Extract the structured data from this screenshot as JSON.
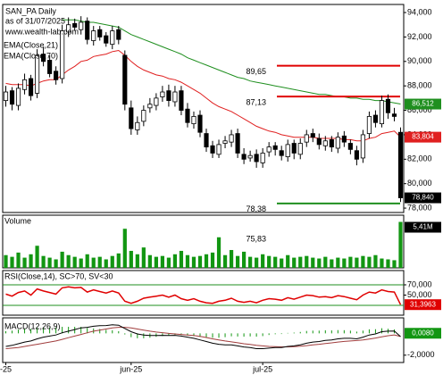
{
  "chart_data": [
    {
      "type": "candlestick",
      "title": "SAN_PA Daily",
      "subtitle": "as of 31/07/2025",
      "source": "www.wealth-lab.com",
      "open": [
        86.8,
        87.6,
        86.4,
        87.7,
        88.6,
        87.4,
        90.6,
        90.1,
        89.2,
        88.6,
        92.4,
        93.1,
        92.6,
        93.3,
        91.7,
        92.6,
        92.1,
        91.4,
        92.6,
        90.5,
        86.2,
        84.4,
        85.1,
        86.2,
        86.4,
        87.1,
        87.6,
        86.7,
        87.6,
        86.1,
        84.9,
        85.6,
        84.1,
        83.1,
        82.4,
        83.3,
        83.4,
        84.1,
        82.4,
        82.1,
        82.4,
        81.7,
        82.6,
        83.1,
        82.7,
        82.2,
        83.3,
        82.4,
        83.4,
        84.1,
        83.7,
        83.1,
        83.6,
        82.9,
        83.9,
        83.3,
        82.7,
        82.1,
        84.1,
        85.6,
        84.9,
        86.9,
        85.7,
        84.2
      ],
      "high": [
        88.0,
        87.9,
        88.2,
        89.0,
        88.9,
        91.0,
        91.2,
        90.5,
        89.6,
        93.0,
        93.6,
        93.5,
        93.7,
        93.6,
        92.9,
        92.9,
        92.4,
        92.9,
        92.9,
        90.9,
        86.8,
        85.5,
        86.4,
        87.0,
        87.4,
        88.0,
        88.1,
        88.0,
        88.0,
        86.6,
        85.9,
        86.0,
        84.5,
        83.5,
        83.6,
        83.9,
        84.4,
        84.5,
        82.9,
        82.7,
        82.8,
        82.9,
        83.4,
        83.4,
        83.1,
        83.6,
        83.6,
        83.7,
        84.4,
        84.5,
        84.1,
        83.9,
        83.9,
        84.2,
        84.3,
        83.6,
        83.1,
        84.4,
        85.9,
        86.0,
        87.2,
        87.3,
        86.2,
        84.6
      ],
      "low": [
        86.3,
        86.0,
        86.0,
        87.3,
        86.8,
        87.0,
        89.6,
        88.7,
        88.1,
        88.2,
        92.0,
        92.5,
        92.2,
        91.4,
        91.3,
        91.7,
        91.2,
        91.0,
        91.4,
        86.0,
        84.0,
        84.0,
        84.7,
        85.8,
        86.0,
        86.7,
        86.3,
        86.3,
        85.6,
        84.6,
        84.5,
        83.8,
        82.6,
        82.1,
        82.1,
        82.9,
        83.0,
        82.1,
        81.6,
        81.8,
        81.3,
        81.3,
        82.2,
        82.3,
        81.9,
        81.8,
        82.0,
        82.0,
        83.0,
        83.4,
        82.8,
        82.7,
        82.6,
        82.5,
        83.0,
        82.4,
        81.5,
        81.7,
        83.7,
        84.6,
        84.6,
        85.3,
        85.1,
        78.5
      ],
      "close": [
        87.5,
        86.5,
        87.8,
        88.5,
        87.2,
        90.5,
        90,
        89,
        88.5,
        92.5,
        93,
        92.8,
        93.2,
        91.8,
        92.5,
        92,
        91.5,
        92.5,
        91.8,
        86.5,
        84.5,
        85,
        86,
        86.5,
        87,
        87.5,
        86.8,
        87.5,
        86,
        85,
        85.5,
        84.2,
        83,
        82.5,
        83.2,
        83.5,
        84,
        82.5,
        82,
        82.3,
        81.8,
        82.5,
        83,
        82.8,
        82.3,
        83.2,
        82.5,
        83.3,
        84,
        83.8,
        83.2,
        83.5,
        83,
        83.8,
        83.4,
        82.8,
        82,
        84,
        85.5,
        85,
        86.8,
        85.8,
        85.5,
        78.84
      ],
      "close_last_label": "78,840",
      "series": [
        {
          "name": "EMA(Close,21)",
          "color": "#e02020",
          "last_label": "83,804",
          "values": [
            88.2,
            88.1,
            88.1,
            88.1,
            88.0,
            88.2,
            88.4,
            88.5,
            88.5,
            88.9,
            89.3,
            89.6,
            90.0,
            90.1,
            90.4,
            90.5,
            90.6,
            90.8,
            90.9,
            90.5,
            90.0,
            89.6,
            89.3,
            89.1,
            88.9,
            88.8,
            88.6,
            88.5,
            88.3,
            88.0,
            87.7,
            87.4,
            87.0,
            86.6,
            86.3,
            86.1,
            85.9,
            85.6,
            85.3,
            85.0,
            84.7,
            84.5,
            84.3,
            84.2,
            84.0,
            83.9,
            83.8,
            83.8,
            83.8,
            83.8,
            83.7,
            83.7,
            83.7,
            83.7,
            83.6,
            83.6,
            83.5,
            83.5,
            83.7,
            83.8,
            84.1,
            84.2,
            84.3,
            83.804
          ]
        },
        {
          "name": "EMA(Close,70)",
          "color": "#1f8f1f",
          "last_label": "86,512",
          "values": [
            null,
            null,
            null,
            null,
            null,
            null,
            null,
            null,
            null,
            93.4,
            93.4,
            93.4,
            93.3,
            93.2,
            93.2,
            93.1,
            93.0,
            92.9,
            92.8,
            92.5,
            92.2,
            92.0,
            91.8,
            91.6,
            91.4,
            91.2,
            91.0,
            90.8,
            90.6,
            90.3,
            90.1,
            89.9,
            89.7,
            89.5,
            89.3,
            89.1,
            88.9,
            88.7,
            88.6,
            88.4,
            88.3,
            88.2,
            88.1,
            88.0,
            87.9,
            87.8,
            87.7,
            87.6,
            87.5,
            87.4,
            87.3,
            87.3,
            87.2,
            87.1,
            87.1,
            87.0,
            87.0,
            86.9,
            86.9,
            86.8,
            86.8,
            86.7,
            86.6,
            86.512
          ]
        }
      ],
      "levels": [
        {
          "value": 89.65,
          "label": "89,65",
          "color": "#e00000"
        },
        {
          "value": 87.13,
          "label": "87,13",
          "color": "#e00000"
        },
        {
          "value": 78.38,
          "label": "78,38",
          "color": "#1f8f1f"
        }
      ],
      "ylim": [
        77.64,
        94.66
      ],
      "yticks": [
        {
          "value": 94,
          "label": "94,000"
        },
        {
          "value": 92,
          "label": "92,000"
        },
        {
          "value": 90,
          "label": "90,000"
        },
        {
          "value": 88,
          "label": "88,000"
        },
        {
          "value": 86,
          "label": "86,000"
        },
        {
          "value": 84,
          "label": "84,000"
        },
        {
          "value": 82,
          "label": "82,000"
        },
        {
          "value": 80,
          "label": "80,000"
        },
        {
          "value": 78,
          "label": "78,000"
        }
      ]
    },
    {
      "type": "bar",
      "title": "Volume",
      "color": "#129612",
      "annotation": "75,83",
      "last_label": "5,41M",
      "ylim": [
        0,
        6.2
      ],
      "values": [
        1.5,
        1.3,
        1.8,
        1.2,
        1.6,
        2.6,
        1.4,
        1.2,
        1.0,
        1.9,
        1.5,
        1.3,
        1.1,
        1.6,
        1.2,
        1.3,
        1.0,
        1.4,
        1.7,
        4.6,
        2.0,
        1.6,
        2.4,
        1.5,
        1.3,
        1.4,
        1.2,
        1.6,
        2.0,
        1.5,
        1.3,
        1.4,
        1.6,
        1.8,
        3.6,
        1.5,
        2.1,
        1.4,
        1.9,
        1.3,
        1.2,
        1.6,
        1.4,
        1.3,
        1.1,
        1.5,
        1.2,
        1.3,
        1.4,
        1.2,
        1.1,
        1.3,
        1.0,
        1.2,
        1.1,
        1.3,
        1.2,
        1.4,
        1.3,
        1.5,
        1.1,
        1.0,
        0.9,
        5.41
      ]
    },
    {
      "type": "line",
      "title": "RSI(Close,14), SC>70, SV<30",
      "color": "#e00000",
      "band_color": "#1f8f1f",
      "bands": [
        70,
        30
      ],
      "last_label": "31,3963",
      "ylim": [
        10.9,
        97.8
      ],
      "yticks": [
        {
          "value": 70,
          "label": "70,000"
        },
        {
          "value": 50,
          "label": "50,000"
        }
      ],
      "values": [
        52,
        48,
        55,
        58,
        50,
        62,
        58,
        55,
        52,
        64,
        66,
        64,
        65,
        56,
        60,
        57,
        54,
        58,
        54,
        38,
        34,
        38,
        44,
        46,
        48,
        50,
        46,
        50,
        43,
        40,
        43,
        38,
        35,
        34,
        38,
        40,
        44,
        38,
        36,
        38,
        35,
        40,
        43,
        42,
        40,
        45,
        42,
        46,
        50,
        49,
        46,
        47,
        45,
        49,
        47,
        44,
        41,
        50,
        56,
        54,
        60,
        57,
        56,
        31.3963
      ]
    },
    {
      "type": "macd",
      "title": "MACD(12,26,9)",
      "macd_color": "#000000",
      "signal_color": "#a03c3c",
      "histogram_color": "#129612",
      "last_label": "0,0080",
      "ylim": [
        -2.67,
        1.42
      ],
      "yticks": [
        {
          "value": -2,
          "label": "-2,0000"
        }
      ],
      "xticks": [
        {
          "value": 0,
          "label": "-25"
        },
        {
          "value": 20,
          "label": "jun-25"
        },
        {
          "value": 41,
          "label": "jul-25"
        }
      ],
      "macd": [
        -1.2,
        -1.1,
        -0.95,
        -0.8,
        -0.7,
        -0.5,
        -0.35,
        -0.25,
        -0.15,
        0.05,
        0.2,
        0.35,
        0.5,
        0.55,
        0.65,
        0.7,
        0.72,
        0.78,
        0.75,
        0.45,
        0.15,
        -0.05,
        -0.15,
        -0.2,
        -0.2,
        -0.18,
        -0.2,
        -0.18,
        -0.25,
        -0.35,
        -0.45,
        -0.6,
        -0.75,
        -0.9,
        -1.0,
        -1.05,
        -1.05,
        -1.15,
        -1.25,
        -1.3,
        -1.4,
        -1.4,
        -1.35,
        -1.3,
        -1.3,
        -1.2,
        -1.15,
        -1.05,
        -0.9,
        -0.8,
        -0.75,
        -0.65,
        -0.6,
        -0.5,
        -0.45,
        -0.45,
        -0.5,
        -0.35,
        -0.15,
        -0.05,
        0.15,
        0.2,
        0.22,
        -0.3
      ],
      "signal": [
        -1.4,
        -1.35,
        -1.3,
        -1.2,
        -1.1,
        -1.0,
        -0.9,
        -0.8,
        -0.7,
        -0.55,
        -0.4,
        -0.25,
        -0.1,
        0.05,
        0.2,
        0.3,
        0.4,
        0.5,
        0.55,
        0.55,
        0.5,
        0.4,
        0.3,
        0.2,
        0.12,
        0.06,
        0.0,
        -0.05,
        -0.1,
        -0.15,
        -0.2,
        -0.28,
        -0.38,
        -0.5,
        -0.6,
        -0.7,
        -0.78,
        -0.86,
        -0.95,
        -1.02,
        -1.1,
        -1.15,
        -1.2,
        -1.22,
        -1.24,
        -1.24,
        -1.22,
        -1.18,
        -1.12,
        -1.05,
        -1.0,
        -0.93,
        -0.87,
        -0.8,
        -0.74,
        -0.7,
        -0.66,
        -0.6,
        -0.52,
        -0.43,
        -0.32,
        -0.22,
        -0.14,
        -0.292
      ],
      "histogram": [
        0.2,
        0.25,
        0.35,
        0.4,
        0.4,
        0.5,
        0.55,
        0.55,
        0.55,
        0.6,
        0.6,
        0.6,
        0.6,
        0.5,
        0.45,
        0.4,
        0.32,
        0.28,
        0.2,
        -0.1,
        -0.35,
        -0.45,
        -0.45,
        -0.4,
        -0.32,
        -0.24,
        -0.2,
        -0.13,
        -0.15,
        -0.2,
        -0.25,
        -0.32,
        -0.37,
        -0.4,
        -0.4,
        -0.35,
        -0.27,
        -0.29,
        -0.3,
        -0.28,
        -0.3,
        -0.25,
        -0.15,
        -0.08,
        -0.06,
        0.04,
        0.07,
        0.13,
        0.22,
        0.25,
        0.25,
        0.28,
        0.27,
        0.3,
        0.29,
        0.25,
        0.16,
        0.25,
        0.37,
        0.38,
        0.47,
        0.42,
        0.36,
        0.008
      ]
    }
  ]
}
